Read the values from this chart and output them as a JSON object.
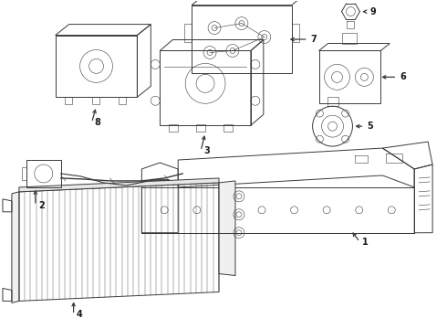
{
  "background_color": "#ffffff",
  "line_color": "#3a3a3a",
  "label_color": "#1a1a1a",
  "figsize": [
    4.9,
    3.6
  ],
  "dpi": 100,
  "components": {
    "part1": {
      "label": "1"
    },
    "part2": {
      "label": "2"
    },
    "part3": {
      "label": "3"
    },
    "part4": {
      "label": "4"
    },
    "part5": {
      "label": "5"
    },
    "part6": {
      "label": "6"
    },
    "part7": {
      "label": "7"
    },
    "part8": {
      "label": "8"
    },
    "part9": {
      "label": "9"
    }
  }
}
